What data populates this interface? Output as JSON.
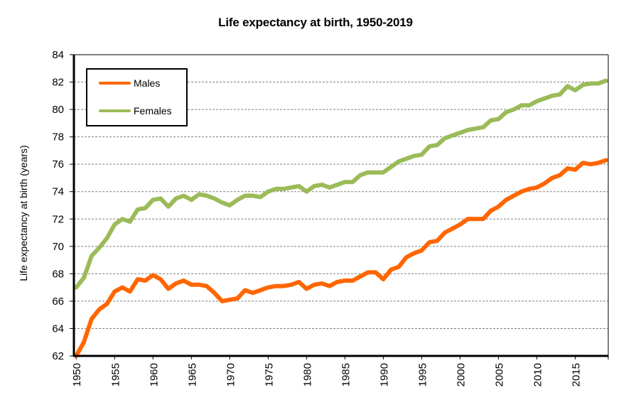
{
  "chart_data": {
    "type": "line",
    "title": "Life expectancy at birth, 1950-2019",
    "xlabel": "",
    "ylabel": "Life expectancy at birth (years)",
    "ylim": [
      62,
      84
    ],
    "xlim": [
      1950,
      2019
    ],
    "yticks": [
      62,
      64,
      66,
      68,
      70,
      72,
      74,
      76,
      78,
      80,
      82,
      84
    ],
    "xticks": [
      1950,
      1955,
      1960,
      1965,
      1970,
      1975,
      1980,
      1985,
      1990,
      1995,
      2000,
      2005,
      2010,
      2015
    ],
    "grid": "horizontal dashed",
    "legend_position": "top-left",
    "x": [
      1950,
      1951,
      1952,
      1953,
      1954,
      1955,
      1956,
      1957,
      1958,
      1959,
      1960,
      1961,
      1962,
      1963,
      1964,
      1965,
      1966,
      1967,
      1968,
      1969,
      1970,
      1971,
      1972,
      1973,
      1974,
      1975,
      1976,
      1977,
      1978,
      1979,
      1980,
      1981,
      1982,
      1983,
      1984,
      1985,
      1986,
      1987,
      1988,
      1989,
      1990,
      1991,
      1992,
      1993,
      1994,
      1995,
      1996,
      1997,
      1998,
      1999,
      2000,
      2001,
      2002,
      2003,
      2004,
      2005,
      2006,
      2007,
      2008,
      2009,
      2010,
      2011,
      2012,
      2013,
      2014,
      2015,
      2016,
      2017,
      2018,
      2019
    ],
    "series": [
      {
        "name": "Males",
        "color": "#ff6600",
        "values": [
          62.0,
          63.0,
          64.7,
          65.4,
          65.8,
          66.7,
          67.0,
          66.7,
          67.6,
          67.5,
          67.9,
          67.6,
          66.9,
          67.3,
          67.5,
          67.2,
          67.2,
          67.1,
          66.6,
          66.0,
          66.1,
          66.2,
          66.8,
          66.6,
          66.8,
          67.0,
          67.1,
          67.1,
          67.2,
          67.4,
          66.9,
          67.2,
          67.3,
          67.1,
          67.4,
          67.5,
          67.5,
          67.8,
          68.1,
          68.1,
          67.6,
          68.3,
          68.5,
          69.2,
          69.5,
          69.7,
          70.3,
          70.4,
          71.0,
          71.3,
          71.6,
          72.0,
          72.0,
          72.0,
          72.6,
          72.9,
          73.4,
          73.7,
          74.0,
          74.2,
          74.3,
          74.6,
          75.0,
          75.2,
          75.7,
          75.6,
          76.1,
          76.0,
          76.1,
          76.3
        ]
      },
      {
        "name": "Females",
        "color": "#9bbb59",
        "values": [
          67.0,
          67.7,
          69.3,
          69.9,
          70.6,
          71.6,
          72.0,
          71.8,
          72.7,
          72.8,
          73.4,
          73.5,
          72.9,
          73.5,
          73.7,
          73.4,
          73.8,
          73.7,
          73.5,
          73.2,
          73.0,
          73.4,
          73.7,
          73.7,
          73.6,
          74.0,
          74.2,
          74.2,
          74.3,
          74.4,
          74.0,
          74.4,
          74.5,
          74.3,
          74.5,
          74.7,
          74.7,
          75.2,
          75.4,
          75.4,
          75.4,
          75.8,
          76.2,
          76.4,
          76.6,
          76.7,
          77.3,
          77.4,
          77.9,
          78.1,
          78.3,
          78.5,
          78.6,
          78.7,
          79.2,
          79.3,
          79.8,
          80.0,
          80.3,
          80.3,
          80.6,
          80.8,
          81.0,
          81.1,
          81.7,
          81.4,
          81.8,
          81.9,
          81.9,
          82.1
        ]
      }
    ]
  }
}
